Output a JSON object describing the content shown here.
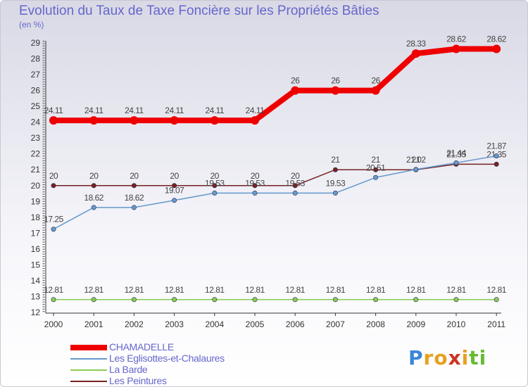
{
  "chart_data": {
    "type": "line",
    "title": "Evolution du Taux de Taxe Foncière sur les Propriétés Bâties",
    "ylabel": "(en %)",
    "xlabel": "",
    "categories": [
      "2000",
      "2001",
      "2002",
      "2003",
      "2004",
      "2005",
      "2006",
      "2007",
      "2008",
      "2009",
      "2010",
      "2011"
    ],
    "ylim": [
      12,
      29
    ],
    "yticks": [
      12,
      13,
      14,
      15,
      16,
      17,
      18,
      19,
      20,
      21,
      22,
      23,
      24,
      25,
      26,
      27,
      28,
      29
    ],
    "grid": false,
    "legend_position": "bottom-left",
    "series": [
      {
        "name": "CHAMADELLE",
        "color": "#ee0000",
        "width": 8,
        "values": [
          24.11,
          24.11,
          24.11,
          24.11,
          24.11,
          24.11,
          26,
          26,
          26,
          28.33,
          28.62,
          28.62
        ],
        "labels": [
          "24.11",
          "24.11",
          "24.11",
          "24.11",
          "24.11",
          "24.11",
          "26",
          "26",
          "26",
          "28.33",
          "28.62",
          "28.62"
        ]
      },
      {
        "name": "Les Eglisottes-et-Chalaures",
        "color": "#6699cc",
        "width": 1.5,
        "values": [
          17.25,
          18.62,
          18.62,
          19.07,
          19.53,
          19.53,
          19.53,
          19.53,
          20.51,
          21.02,
          21.44,
          21.87
        ],
        "labels": [
          "17.25",
          "18.62",
          "18.62",
          "19.07",
          "19.53",
          "19.53",
          "19.53",
          "19.53",
          "20.51",
          "21.02",
          "21.44",
          "21.87"
        ]
      },
      {
        "name": "La Barde",
        "color": "#88cc55",
        "width": 1.5,
        "values": [
          12.81,
          12.81,
          12.81,
          12.81,
          12.81,
          12.81,
          12.81,
          12.81,
          12.81,
          12.81,
          12.81,
          12.81
        ],
        "labels": [
          "12.81",
          "12.81",
          "12.81",
          "12.81",
          "12.81",
          "12.81",
          "12.81",
          "12.81",
          "12.81",
          "12.81",
          "12.81",
          "12.81"
        ]
      },
      {
        "name": "Les Peintures",
        "color": "#772222",
        "width": 1.5,
        "values": [
          20,
          20,
          20,
          20,
          20,
          20,
          20,
          21,
          21,
          21,
          21.35,
          21.35
        ],
        "labels": [
          "20",
          "20",
          "20",
          "20",
          "20",
          "20",
          "20",
          "21",
          "21",
          "21",
          "21.35",
          "21.35"
        ]
      }
    ]
  },
  "logo": {
    "letters": [
      {
        "ch": "P",
        "color": "#3a86d8"
      },
      {
        "ch": "r",
        "color": "#e8a020"
      },
      {
        "ch": "o",
        "color": "#e8a020"
      },
      {
        "ch": "x",
        "color": "#cc3322"
      },
      {
        "ch": "i",
        "color": "#e8a020"
      },
      {
        "ch": "t",
        "color": "#66bb33"
      },
      {
        "ch": "i",
        "color": "#66bb33"
      }
    ]
  }
}
